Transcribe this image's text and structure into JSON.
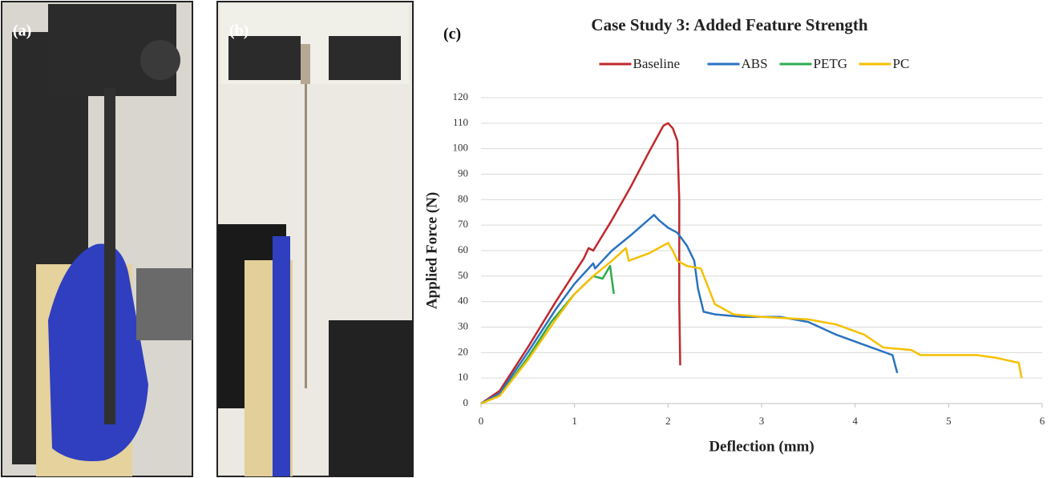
{
  "panel_labels": [
    "(a)",
    "(b)",
    "(c)"
  ],
  "chart_data": {
    "type": "line",
    "title": "Case Study 3: Added Feature Strength",
    "x_label": "Deflection (mm)",
    "y_label": "Applied Force (N)",
    "xlim": [
      0,
      6
    ],
    "xticks": [
      0,
      1,
      2,
      3,
      4,
      5,
      6
    ],
    "ylim": [
      0,
      120
    ],
    "yticks": [
      0,
      10,
      20,
      30,
      40,
      50,
      60,
      70,
      80,
      90,
      100,
      110,
      120
    ],
    "grid": true,
    "legend": "top",
    "series": [
      {
        "name": "Baseline",
        "color": "#c0282d",
        "x": [
          0,
          0.2,
          0.5,
          0.8,
          1.1,
          1.15,
          1.2,
          1.4,
          1.6,
          1.8,
          1.95,
          2.0,
          2.05,
          2.1,
          2.12,
          2.12,
          2.13
        ],
        "values": [
          0,
          5,
          22,
          40,
          57,
          61,
          60,
          72,
          85,
          99,
          109,
          110,
          108,
          103,
          80,
          40,
          15
        ]
      },
      {
        "name": "ABS",
        "color": "#2a73c0",
        "x": [
          0,
          0.2,
          0.5,
          0.8,
          1.0,
          1.2,
          1.22,
          1.4,
          1.6,
          1.85,
          1.9,
          2.0,
          2.1,
          2.2,
          2.28,
          2.32,
          2.38,
          2.5,
          2.8,
          3.2,
          3.5,
          3.8,
          4.1,
          4.4,
          4.45
        ],
        "values": [
          0,
          4,
          20,
          37,
          47,
          55,
          53,
          60,
          66,
          74,
          72,
          69,
          67,
          62,
          56,
          45,
          36,
          35,
          34,
          34,
          32,
          27,
          23,
          19,
          12
        ]
      },
      {
        "name": "PETG",
        "color": "#2eab4f",
        "x": [
          0,
          0.2,
          0.5,
          0.75,
          1.0,
          1.2,
          1.3,
          1.38,
          1.42
        ],
        "values": [
          0,
          3,
          18,
          32,
          43,
          50,
          49,
          54,
          43
        ]
      },
      {
        "name": "PC",
        "color": "#f5c000",
        "x": [
          0,
          0.2,
          0.5,
          0.8,
          1.0,
          1.2,
          1.4,
          1.55,
          1.58,
          1.8,
          2.0,
          2.05,
          2.1,
          2.2,
          2.35,
          2.5,
          2.7,
          3.0,
          3.5,
          3.8,
          4.1,
          4.3,
          4.6,
          4.7,
          5.0,
          5.3,
          5.5,
          5.75,
          5.78
        ],
        "values": [
          0,
          3,
          17,
          33,
          43,
          50,
          56,
          61,
          56,
          59,
          63,
          60,
          56,
          54,
          53,
          39,
          35,
          34,
          33,
          31,
          27,
          22,
          21,
          19,
          19,
          19,
          18,
          16,
          10
        ]
      }
    ]
  }
}
